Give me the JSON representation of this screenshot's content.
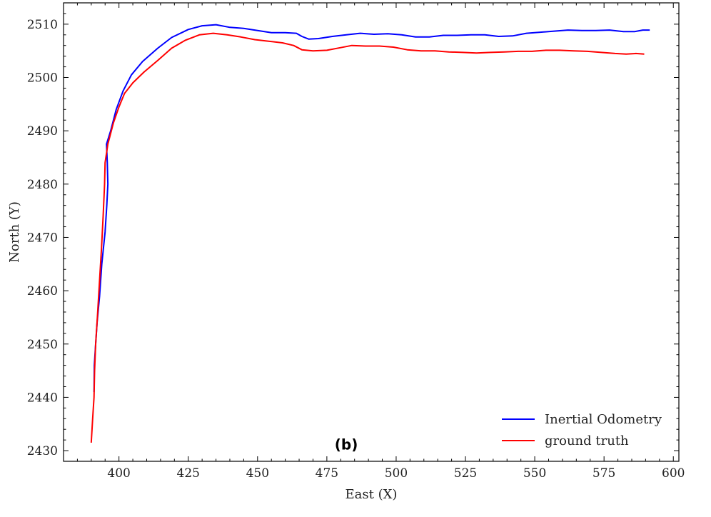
{
  "chart_data": {
    "type": "line",
    "xlabel": "East (X)",
    "ylabel": "North (Y)",
    "xlim": [
      380,
      602
    ],
    "ylim": [
      2428,
      2514
    ],
    "x_ticks": [
      400,
      425,
      450,
      475,
      500,
      525,
      550,
      575,
      600
    ],
    "x_tick_labels": [
      "400",
      "425",
      "450",
      "475",
      "500",
      "525",
      "550",
      "575",
      "600"
    ],
    "y_ticks": [
      2430,
      2440,
      2450,
      2460,
      2470,
      2480,
      2490,
      2500,
      2510
    ],
    "y_tick_labels": [
      "2430",
      "2440",
      "2450",
      "2460",
      "2470",
      "2480",
      "2490",
      "2500",
      "2510"
    ],
    "grid": false,
    "legend_position": "bottom-right",
    "annotation": "(b)",
    "series": [
      {
        "name": "Inertial Odometry",
        "color": "#0000ff",
        "points": [
          [
            391.0,
            2441.0
          ],
          [
            391.1,
            2446.0
          ],
          [
            391.6,
            2450.0
          ],
          [
            392.1,
            2454.0
          ],
          [
            393.0,
            2459.0
          ],
          [
            393.8,
            2465.0
          ],
          [
            395.0,
            2471.0
          ],
          [
            395.6,
            2476.0
          ],
          [
            396.0,
            2480.0
          ],
          [
            395.8,
            2484.0
          ],
          [
            395.5,
            2487.5
          ],
          [
            397.0,
            2490.0
          ],
          [
            399.0,
            2494.0
          ],
          [
            401.5,
            2497.5
          ],
          [
            404.5,
            2500.5
          ],
          [
            408.5,
            2503.0
          ],
          [
            414.0,
            2505.5
          ],
          [
            419.0,
            2507.5
          ],
          [
            425.0,
            2509.0
          ],
          [
            430.0,
            2509.7
          ],
          [
            435.0,
            2509.9
          ],
          [
            440.0,
            2509.4
          ],
          [
            445.0,
            2509.2
          ],
          [
            450.0,
            2508.8
          ],
          [
            455.0,
            2508.4
          ],
          [
            460.0,
            2508.4
          ],
          [
            464.0,
            2508.3
          ],
          [
            466.0,
            2507.7
          ],
          [
            468.5,
            2507.2
          ],
          [
            472.0,
            2507.3
          ],
          [
            477.0,
            2507.7
          ],
          [
            482.0,
            2508.0
          ],
          [
            487.0,
            2508.3
          ],
          [
            492.0,
            2508.1
          ],
          [
            497.0,
            2508.2
          ],
          [
            502.0,
            2508.0
          ],
          [
            507.0,
            2507.6
          ],
          [
            512.0,
            2507.6
          ],
          [
            517.0,
            2507.9
          ],
          [
            522.0,
            2507.9
          ],
          [
            527.0,
            2508.0
          ],
          [
            532.0,
            2508.0
          ],
          [
            537.0,
            2507.7
          ],
          [
            542.0,
            2507.8
          ],
          [
            547.0,
            2508.3
          ],
          [
            552.0,
            2508.5
          ],
          [
            557.0,
            2508.7
          ],
          [
            562.0,
            2508.9
          ],
          [
            567.0,
            2508.8
          ],
          [
            572.0,
            2508.8
          ],
          [
            577.0,
            2508.9
          ],
          [
            582.0,
            2508.6
          ],
          [
            586.0,
            2508.6
          ],
          [
            589.0,
            2508.9
          ],
          [
            591.5,
            2508.9
          ]
        ]
      },
      {
        "name": "ground truth",
        "color": "#ff0000",
        "points": [
          [
            390.0,
            2431.5
          ],
          [
            390.5,
            2436.0
          ],
          [
            391.0,
            2440.0
          ],
          [
            391.2,
            2445.0
          ],
          [
            391.6,
            2450.0
          ],
          [
            392.2,
            2455.0
          ],
          [
            393.0,
            2462.0
          ],
          [
            393.7,
            2468.0
          ],
          [
            394.3,
            2474.0
          ],
          [
            394.8,
            2480.0
          ],
          [
            395.0,
            2484.0
          ],
          [
            396.0,
            2487.5
          ],
          [
            398.0,
            2491.5
          ],
          [
            400.0,
            2494.5
          ],
          [
            402.0,
            2497.0
          ],
          [
            405.0,
            2499.0
          ],
          [
            409.0,
            2501.0
          ],
          [
            414.0,
            2503.2
          ],
          [
            419.0,
            2505.5
          ],
          [
            424.0,
            2507.0
          ],
          [
            429.0,
            2508.0
          ],
          [
            434.0,
            2508.3
          ],
          [
            439.0,
            2508.0
          ],
          [
            444.0,
            2507.6
          ],
          [
            449.0,
            2507.1
          ],
          [
            454.0,
            2506.8
          ],
          [
            459.0,
            2506.5
          ],
          [
            463.0,
            2506.0
          ],
          [
            466.0,
            2505.2
          ],
          [
            470.0,
            2505.0
          ],
          [
            475.0,
            2505.1
          ],
          [
            480.0,
            2505.6
          ],
          [
            484.0,
            2506.0
          ],
          [
            489.0,
            2505.9
          ],
          [
            494.0,
            2505.9
          ],
          [
            499.0,
            2505.7
          ],
          [
            504.0,
            2505.2
          ],
          [
            509.0,
            2505.0
          ],
          [
            514.0,
            2505.0
          ],
          [
            519.0,
            2504.8
          ],
          [
            524.0,
            2504.7
          ],
          [
            529.0,
            2504.6
          ],
          [
            534.0,
            2504.7
          ],
          [
            539.0,
            2504.8
          ],
          [
            544.0,
            2504.9
          ],
          [
            549.0,
            2504.9
          ],
          [
            554.0,
            2505.1
          ],
          [
            559.0,
            2505.1
          ],
          [
            564.0,
            2505.0
          ],
          [
            569.0,
            2504.9
          ],
          [
            574.0,
            2504.7
          ],
          [
            579.0,
            2504.5
          ],
          [
            583.0,
            2504.4
          ],
          [
            586.5,
            2504.5
          ],
          [
            589.5,
            2504.4
          ]
        ]
      }
    ]
  }
}
